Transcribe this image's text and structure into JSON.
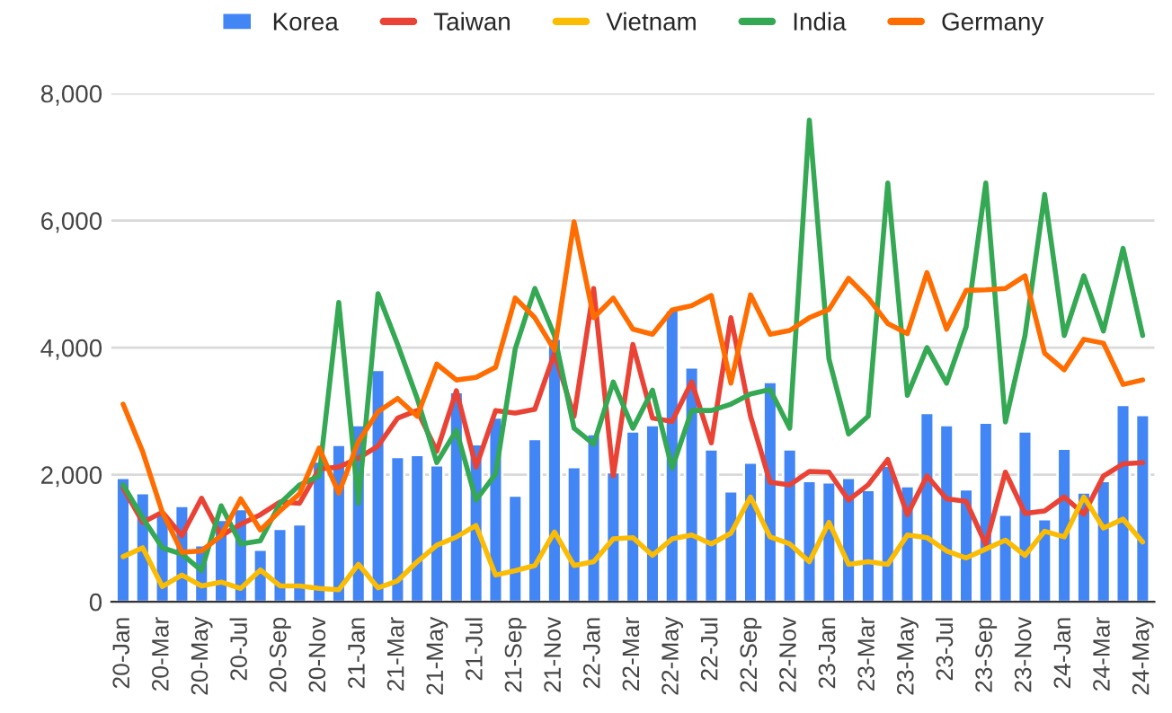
{
  "chart_data": {
    "type": "bar",
    "categories": [
      "20-Jan",
      null,
      "20-Mar",
      null,
      "20-May",
      null,
      "20-Jul",
      null,
      "20-Sep",
      null,
      "20-Nov",
      null,
      "21-Jan",
      null,
      "21-Mar",
      null,
      "21-May",
      null,
      "21-Jul",
      null,
      "21-Sep",
      null,
      "21-Nov",
      null,
      "22-Jan",
      null,
      "22-Mar",
      null,
      "22-May",
      null,
      "22-Jul",
      null,
      "22-Sep",
      null,
      "22-Nov",
      null,
      "23-Jan",
      null,
      "23-Mar",
      null,
      "23-May",
      null,
      "23-Jul",
      null,
      "23-Sep",
      null,
      "23-Nov",
      null,
      "24-Jan",
      null,
      "24-Mar",
      null,
      "24-May"
    ],
    "series": [
      {
        "name": "Korea",
        "color": "#4285f4",
        "values": [
          1950,
          1710,
          1380,
          1510,
          890,
          1290,
          1460,
          820,
          1150,
          1220,
          2210,
          2470,
          2780,
          3650,
          2280,
          2310,
          2150,
          3300,
          2480,
          2900,
          1670,
          2560,
          4140,
          2120,
          2640,
          2040,
          2680,
          2780,
          4590,
          3690,
          2400,
          1740,
          2190,
          3460,
          2400,
          1900,
          1880,
          1950,
          1760,
          2140,
          1820,
          2970,
          2780,
          1770,
          2820,
          1370,
          2680,
          1300,
          2410,
          1720,
          1900,
          3100,
          2940
        ]
      },
      {
        "name": "Taiwan",
        "type": "line",
        "color": "#ea4335",
        "values": [
          1790,
          1250,
          1410,
          1040,
          1630,
          1040,
          1220,
          1370,
          1570,
          1550,
          2090,
          2120,
          2260,
          2450,
          2890,
          3010,
          2370,
          3320,
          2120,
          3010,
          2970,
          3030,
          3910,
          2920,
          4930,
          1980,
          4050,
          2890,
          2840,
          3460,
          2500,
          4470,
          2920,
          1880,
          1840,
          2050,
          2040,
          1600,
          1840,
          2240,
          1370,
          1980,
          1620,
          1580,
          900,
          2040,
          1390,
          1430,
          1650,
          1380,
          1980,
          2170,
          2190
        ]
      },
      {
        "name": "Vietnam",
        "type": "line",
        "color": "#fbbc04",
        "values": [
          710,
          850,
          240,
          420,
          250,
          310,
          210,
          500,
          250,
          250,
          210,
          190,
          590,
          220,
          330,
          630,
          890,
          1020,
          1200,
          420,
          490,
          570,
          1100,
          570,
          630,
          990,
          1010,
          730,
          990,
          1050,
          910,
          1080,
          1650,
          1020,
          910,
          630,
          1250,
          590,
          630,
          590,
          1050,
          1010,
          800,
          690,
          830,
          970,
          730,
          1110,
          1020,
          1650,
          1160,
          1300,
          940
        ]
      },
      {
        "name": "India",
        "type": "line",
        "color": "#34a853",
        "values": [
          1840,
          1320,
          850,
          750,
          490,
          1510,
          910,
          960,
          1550,
          1840,
          1980,
          4710,
          1550,
          4850,
          4050,
          3200,
          2190,
          2700,
          1600,
          2010,
          3980,
          4930,
          4190,
          2730,
          2480,
          3460,
          2730,
          3330,
          2100,
          3010,
          3010,
          3110,
          3270,
          3340,
          2730,
          7580,
          3820,
          2640,
          2920,
          6590,
          3250,
          4000,
          3440,
          4330,
          6590,
          2830,
          4190,
          6410,
          4190,
          5130,
          4260,
          5560,
          4190
        ]
      },
      {
        "name": "Germany",
        "type": "line",
        "color": "#ff6d01",
        "values": [
          3110,
          2360,
          1410,
          780,
          800,
          1040,
          1620,
          1130,
          1430,
          1700,
          2420,
          1710,
          2520,
          2990,
          3200,
          2920,
          3740,
          3490,
          3530,
          3690,
          4780,
          4470,
          3960,
          5980,
          4470,
          4780,
          4290,
          4210,
          4590,
          4660,
          4820,
          3440,
          4830,
          4210,
          4270,
          4470,
          4600,
          5090,
          4780,
          4380,
          4220,
          5180,
          4290,
          4900,
          4910,
          4930,
          5130,
          3910,
          3650,
          4130,
          4070,
          3420,
          3490
        ]
      }
    ],
    "ylim": [
      0,
      8000
    ],
    "yticks": [
      0,
      {
        "value": 2000,
        "label": "2,000"
      },
      {
        "value": 4000,
        "label": "4,000"
      },
      {
        "value": 6000,
        "label": "6,000"
      },
      {
        "value": 8000,
        "label": "8,000"
      }
    ],
    "grid": "y",
    "legend": "top",
    "line_style": "solid",
    "marker": "none"
  }
}
